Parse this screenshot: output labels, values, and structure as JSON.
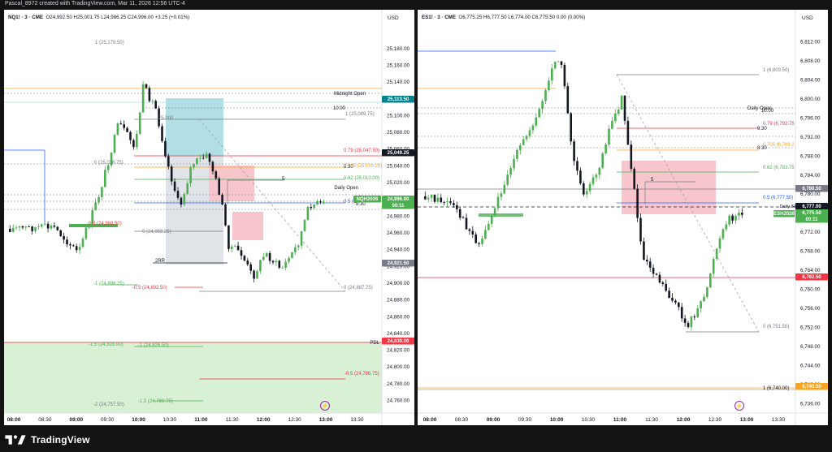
{
  "topbar": {
    "text": "Pascal_8972 created with TradingView.com, Mar 11, 2026 12:56 UTC-4"
  },
  "brand": {
    "name": "TradingView",
    "logo_icon": "tradingview-logo-icon"
  },
  "colors": {
    "bull": "#089981",
    "bull_body": "#4caf50",
    "bear": "#131722",
    "blue_box": "#b2dfe5",
    "red_box": "#f7c6cc",
    "grey_box": "#e0e3e8",
    "green_zone": "#d8f0d4",
    "red": "#f23645",
    "orange": "#f5a623",
    "green": "#4caf50",
    "blue": "#2962ff",
    "grey": "#787b86"
  },
  "left": {
    "header": {
      "symbol": "NQ1! · 3 · CME",
      "ohlc": "O24,992.50  H25,001.75  L24,986.25  C24,996.00  +3.25 (+0.01%)"
    },
    "currency": "USD",
    "price_axis": {
      "min": 24745,
      "max": 25205,
      "ticks": [
        "25,180.00",
        "25,160.00",
        "25,140.00",
        "25,120.00",
        "25,100.00",
        "25,080.00",
        "25,060.00",
        "25,040.00",
        "25,020.00",
        "25,000.00",
        "24,980.00",
        "24,960.00",
        "24,940.00",
        "24,920.00",
        "24,900.00",
        "24,880.00",
        "24,860.00",
        "24,840.00",
        "24,820.00",
        "24,800.00",
        "24,780.00",
        "24,760.00"
      ]
    },
    "time_axis": [
      "08:00",
      "08:30",
      "09:00",
      "09:30",
      "10:00",
      "10:30",
      "11:00",
      "11:30",
      "12:00",
      "12:30",
      "13:00",
      "13:30"
    ],
    "price_badges": [
      {
        "label": "25,113.50",
        "color": "#00838f"
      },
      {
        "label": "25,049.25",
        "color": "#131722"
      },
      {
        "label": "NQH2026",
        "color": "#4caf50"
      },
      {
        "label": "24,996.00",
        "color": "#4caf50"
      },
      {
        "label": "00:11",
        "color": "#4caf50"
      },
      {
        "label": "24,921.50",
        "color": "#787b86"
      },
      {
        "label": "24,830.00",
        "color": "#f23645"
      }
    ],
    "level_labels": [
      {
        "text": "Midnight Open",
        "color": "#131722"
      },
      {
        "text": "10:00",
        "color": "#131722"
      },
      {
        "text": "1 (25,089.75)",
        "color": "#787b86"
      },
      {
        "text": "0.79 (25,047.50)",
        "color": "#f23645"
      },
      {
        "text": "9:30",
        "color": "#131722"
      },
      {
        "text": "0.705 (25,030.25)",
        "color": "#f5a623"
      },
      {
        "text": "0.62 (25,013.00)",
        "color": "#4caf50"
      },
      {
        "text": "Daily Open",
        "color": "#131722"
      },
      {
        "text": "8:30",
        "color": "#131722"
      },
      {
        "text": "0.5 (2",
        "color": "#2962ff"
      },
      {
        "text": "1 (25,179.50)",
        "color": "#787b86"
      },
      {
        "text": "0 (25,038.75)",
        "color": "#787b86"
      },
      {
        "text": "0.5 (24,968.50)",
        "color": "#f23645"
      },
      {
        "text": "0 (24,958.25)",
        "color": "#787b86"
      },
      {
        "text": "2RR",
        "color": "#131722"
      },
      {
        "text": "-1 (24,898.25)",
        "color": "#4caf50"
      },
      {
        "text": "-0.5 (24,892.50)",
        "color": "#f23645"
      },
      {
        "text": "0 (24,887.75)",
        "color": "#787b86"
      },
      {
        "text": "PDL",
        "color": "#131722"
      },
      {
        "text": "-1.5 (24,828.00)",
        "color": "#4caf50"
      },
      {
        "text": "-1 (24,826.50)",
        "color": "#4caf50"
      },
      {
        "text": "-0.5 (24,786.75)",
        "color": "#f23645"
      },
      {
        "text": "-1.5 (24,760.75)",
        "color": "#4caf50"
      },
      {
        "text": "-2 (24,757.50)",
        "color": "#787b86"
      },
      {
        "text": "5",
        "color": "#131722"
      },
      {
        "text": "25,000",
        "color": "#787b86"
      }
    ]
  },
  "right": {
    "header": {
      "symbol": "ES1! · 3 · CME",
      "ohlc": "O6,775.25  H6,777.50  L6,774.00  C6,775.50  0.00 (0.00%)"
    },
    "currency": "USD",
    "price_axis": {
      "min": 6734,
      "max": 6815,
      "ticks": [
        "6,812.00",
        "6,808.00",
        "6,804.00",
        "6,800.00",
        "6,796.00",
        "6,792.00",
        "6,788.00",
        "6,784.00",
        "6,780.00",
        "6,776.00",
        "6,772.00",
        "6,768.00",
        "6,764.00",
        "6,760.00",
        "6,756.00",
        "6,752.00",
        "6,748.00",
        "6,744.00",
        "6,740.00",
        "6,736.00"
      ]
    },
    "time_axis": [
      "08:00",
      "08:30",
      "09:00",
      "09:30",
      "10:00",
      "10:30",
      "11:00",
      "11:30",
      "12:00",
      "12:30",
      "13:00",
      "13:30"
    ],
    "price_badges": [
      {
        "label": "6,780.50",
        "color": "#787b86"
      },
      {
        "label": "6,777.00",
        "color": "#131722"
      },
      {
        "label": "ESH2026",
        "color": "#4caf50"
      },
      {
        "label": "6,775.50",
        "color": "#4caf50"
      },
      {
        "label": "00:11",
        "color": "#4caf50"
      },
      {
        "label": "6,762.50",
        "color": "#f23645"
      },
      {
        "label": "6,740.50",
        "color": "#f5a623"
      }
    ],
    "level_labels": [
      {
        "text": "1 (6,803.50)",
        "color": "#787b86"
      },
      {
        "text": "10:00",
        "color": "#131722"
      },
      {
        "text": "Daily Open",
        "color": "#131722"
      },
      {
        "text": "0.79 (6,792.75",
        "color": "#f23645"
      },
      {
        "text": "9:30",
        "color": "#131722"
      },
      {
        "text": "0.705 (6,788.2",
        "color": "#f5a623"
      },
      {
        "text": "8:30",
        "color": "#131722"
      },
      {
        "text": "0.62 (6,783.75",
        "color": "#4caf50"
      },
      {
        "text": "0.5 (6,777.50)",
        "color": "#2962ff"
      },
      {
        "text": "Daily IR",
        "color": "#131722"
      },
      {
        "text": "0 (6,751.50)",
        "color": "#787b86"
      },
      {
        "text": "1 (6,740.00)",
        "color": "#131722"
      },
      {
        "text": "5",
        "color": "#131722"
      }
    ]
  }
}
